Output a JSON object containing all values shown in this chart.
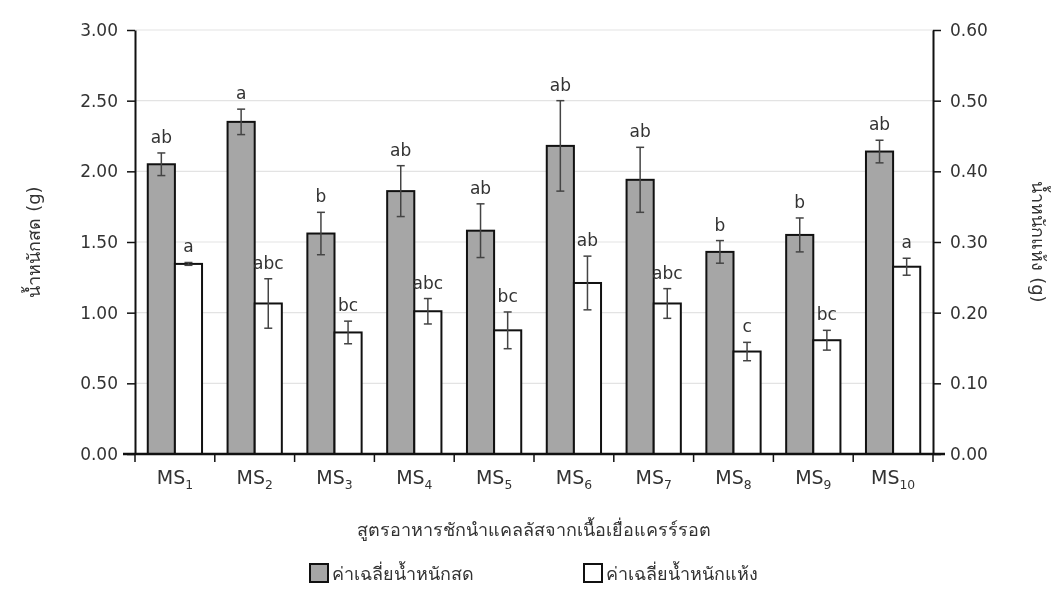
{
  "chart_data": {
    "type": "bar",
    "xlabel": "สูตรอาหารชักนำแคลลัสจากเนื้อเยื่อแครร์รอต",
    "ylabel": "น้ำหนักสด (g)",
    "y2label": "น้ำหนักแห้ง (g)",
    "categories": [
      "MS$_{1}$",
      "MS$_{2}$",
      "MS$_{3}$",
      "MS$_{4}$",
      "MS$_{5}$",
      "MS$_{6}$",
      "MS$_{7}$",
      "MS$_{8}$",
      "MS$_{9}$",
      "MS$_{10}$"
    ],
    "series": [
      {
        "name": "ค่าเฉลี่ยน้ำหนักสด",
        "color": "#a6a6a6",
        "values": [
          2.05,
          2.35,
          1.56,
          1.86,
          1.58,
          2.18,
          1.94,
          1.43,
          1.55,
          2.14
        ],
        "errors": [
          0.08,
          0.09,
          0.15,
          0.18,
          0.19,
          0.32,
          0.23,
          0.08,
          0.12,
          0.08
        ]
      },
      {
        "name": "ค่าเฉลี่ยน้ำหนักแห้ง",
        "color": "#ffffff",
        "axis": "y2",
        "values": [
          0.269,
          0.213,
          0.172,
          0.202,
          0.175,
          0.242,
          0.213,
          0.145,
          0.161,
          0.265
        ],
        "errors": [
          0.002,
          0.035,
          0.016,
          0.018,
          0.026,
          0.038,
          0.021,
          0.013,
          0.014,
          0.012
        ]
      }
    ],
    "ylim": [
      0,
      3
    ],
    "yticks": [
      {
        "value": 0,
        "label": "0.00"
      },
      {
        "value": 0.5,
        "label": "0.50"
      },
      {
        "value": 1,
        "label": "1.00"
      },
      {
        "value": 1.5,
        "label": "1.50"
      },
      {
        "value": 2,
        "label": "2.00"
      },
      {
        "value": 2.5,
        "label": "2.50"
      },
      {
        "value": 3,
        "label": "3.00"
      }
    ],
    "y2lim": [
      0,
      0.6
    ],
    "y2ticks": [
      {
        "value": 0,
        "label": "0.00"
      },
      {
        "value": 0.1,
        "label": "0.10"
      },
      {
        "value": 0.2,
        "label": "0.20"
      },
      {
        "value": 0.3,
        "label": "0.30"
      },
      {
        "value": 0.4,
        "label": "0.40"
      },
      {
        "value": 0.5,
        "label": "0.50"
      },
      {
        "value": 0.6,
        "label": "0.60"
      }
    ],
    "grid": "y",
    "legend": "bottom",
    "annotations": [
      "ab",
      "a",
      "a",
      "abc",
      "b",
      "bc",
      "ab",
      "abc",
      "ab",
      "bc",
      "ab",
      "ab",
      "ab",
      "abc",
      "b",
      "c",
      "b",
      "bc",
      "ab",
      "a"
    ]
  }
}
